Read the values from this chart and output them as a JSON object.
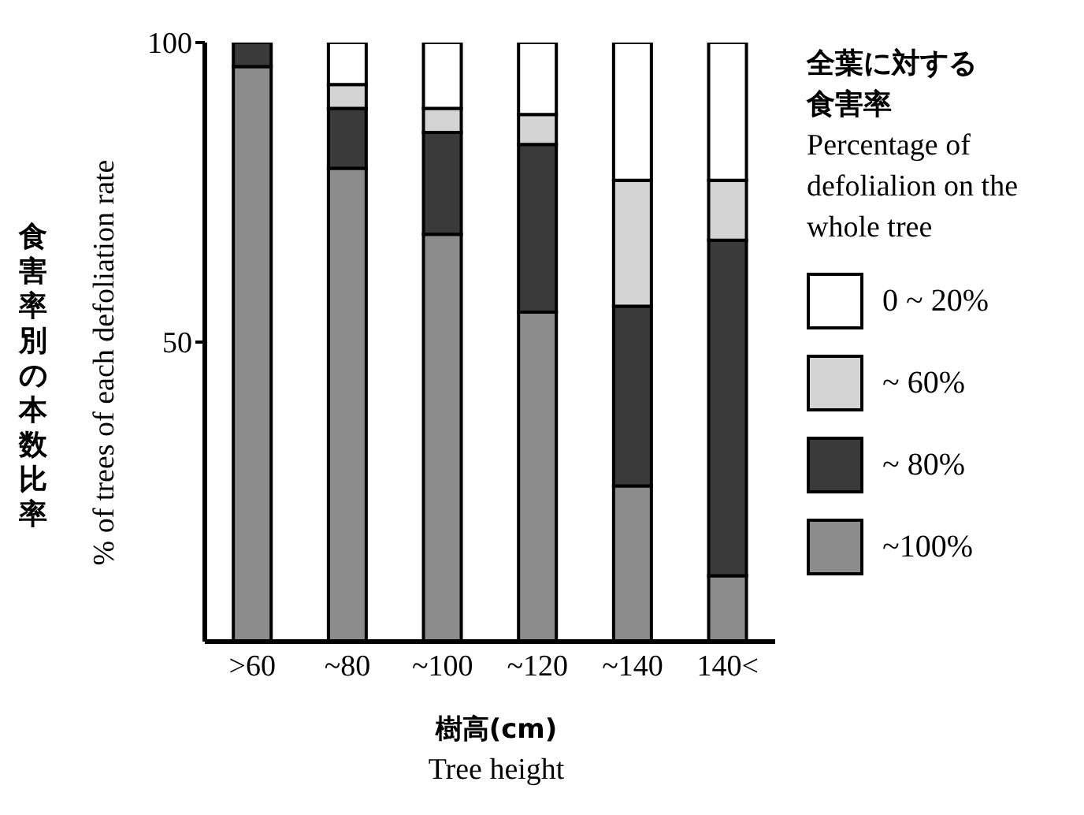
{
  "chart_data": {
    "type": "bar",
    "stacked": true,
    "categories": [
      ">60",
      "~80",
      "~100",
      "~120",
      "~140",
      "140<"
    ],
    "series": [
      {
        "name": "~100%",
        "color": "#8c8c8c",
        "values": [
          96,
          79,
          68,
          55,
          26,
          11
        ]
      },
      {
        "name": "~ 80%",
        "color": "#3a3a3a",
        "values": [
          4,
          10,
          17,
          28,
          30,
          56
        ]
      },
      {
        "name": "~ 60%",
        "color": "#d4d4d4",
        "values": [
          0,
          4,
          4,
          5,
          21,
          10
        ]
      },
      {
        "name": "0 ~ 20%",
        "color": "#ffffff",
        "values": [
          0,
          7,
          11,
          12,
          23,
          23
        ]
      }
    ],
    "ylim": [
      0,
      100
    ],
    "yticks": [
      50,
      100
    ],
    "xlabel": "樹高(cm)\nTree height",
    "ylabel": "食害率別の本数比率\n% of trees of each defoliation rate",
    "legend_title": "全葉に対する食害率\nPercentage of defolialion on the whole tree",
    "legend": "right"
  }
}
